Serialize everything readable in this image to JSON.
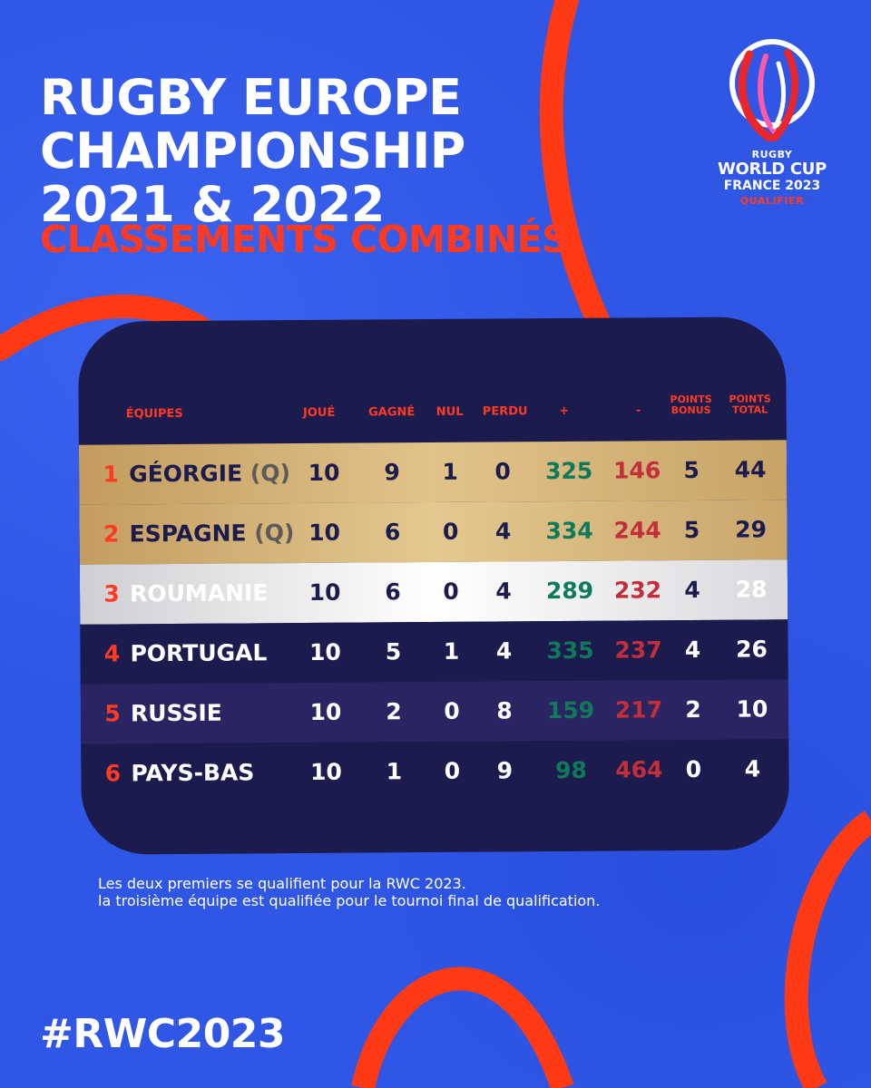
{
  "title_lines": [
    "RUGBY EUROPE",
    "CHAMPIONSHIP",
    "2021 & 2022"
  ],
  "subtitle": "CLASSEMENTS COMBINÉS",
  "logo": {
    "line1": "RUGBY",
    "line2": "WORLD CUP",
    "line3": "FRANCE 2023",
    "line4": "QUALIFIER"
  },
  "table": {
    "headers": {
      "team": "ÉQUIPES",
      "played": "JOUÉ",
      "won": "GAGNÉ",
      "drawn": "NUL",
      "lost": "PERDU",
      "plus": "+",
      "minus": "-",
      "bonus_1": "POINTS",
      "bonus_2": "BONUS",
      "total_1": "POINTS",
      "total_2": "TOTAL"
    },
    "rows": [
      {
        "rank": "1",
        "team": "GÉORGIE",
        "q": "(Q)",
        "played": "10",
        "won": "9",
        "drawn": "1",
        "lost": "0",
        "plus": "325",
        "minus": "146",
        "bonus": "5",
        "total": "44"
      },
      {
        "rank": "2",
        "team": "ESPAGNE",
        "q": "(Q)",
        "played": "10",
        "won": "6",
        "drawn": "0",
        "lost": "4",
        "plus": "334",
        "minus": "244",
        "bonus": "5",
        "total": "29"
      },
      {
        "rank": "3",
        "team": "ROUMANIE",
        "q": "",
        "played": "10",
        "won": "6",
        "drawn": "0",
        "lost": "4",
        "plus": "289",
        "minus": "232",
        "bonus": "4",
        "total": "28"
      },
      {
        "rank": "4",
        "team": "PORTUGAL",
        "q": "",
        "played": "10",
        "won": "5",
        "drawn": "1",
        "lost": "4",
        "plus": "335",
        "minus": "237",
        "bonus": "4",
        "total": "26"
      },
      {
        "rank": "5",
        "team": "RUSSIE",
        "q": "",
        "played": "10",
        "won": "2",
        "drawn": "0",
        "lost": "8",
        "plus": "159",
        "minus": "217",
        "bonus": "2",
        "total": "10"
      },
      {
        "rank": "6",
        "team": "PAYS-BAS",
        "q": "",
        "played": "10",
        "won": "1",
        "drawn": "0",
        "lost": "9",
        "plus": "98",
        "minus": "464",
        "bonus": "0",
        "total": "4"
      }
    ]
  },
  "note_lines": [
    "Les deux premiers se qualifient pour la RWC 2023.",
    "la troisième équipe est qualifiée pour le tournoi final de qualification."
  ],
  "hashtag": "#RWC2023",
  "colors": {
    "background": "#2f56e4",
    "accent_red": "#ff3a22",
    "panel": "#1b1c4d",
    "gold": "#e1c38a",
    "silver": "#ffffff",
    "points_for": "#0f7a5a",
    "points_against": "#c22f3a"
  }
}
